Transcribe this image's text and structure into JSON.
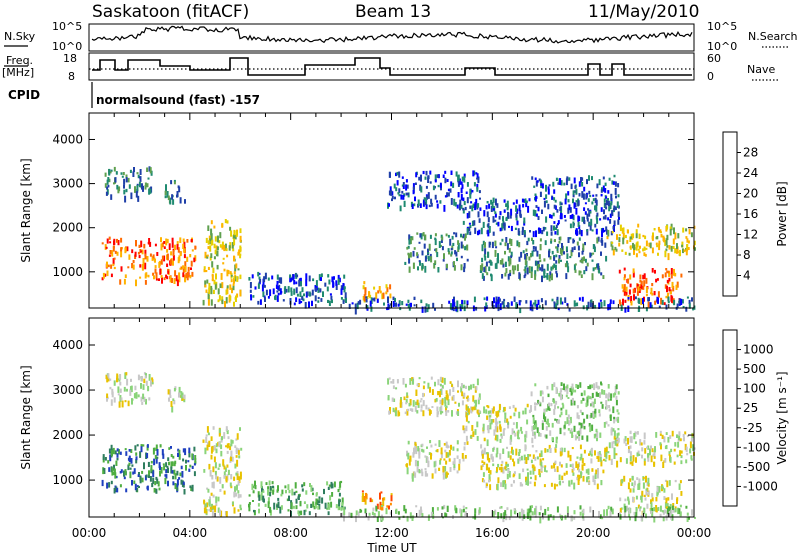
{
  "header": {
    "station": "Saskatoon (fitACF)",
    "beam": "Beam 13",
    "date": "11/May/2010"
  },
  "summary_labels": {
    "nsky": "N.Sky",
    "nsky_top": "10^5",
    "nsky_bottom": "10^0",
    "nsearch": "N.Search",
    "nsearch_top": "10^5",
    "nsearch_bottom": "10^0",
    "freq_line1": "Freq.",
    "freq_line2": "[MHz]",
    "freq_top": "18",
    "freq_bottom": "8",
    "nave": "Nave",
    "nave_top": "60",
    "nave_bottom": "0",
    "cpid": "CPID",
    "cpid_value": "normalsound (fast) -157"
  },
  "colorbars": {
    "power": {
      "label": "Power [dB]",
      "ticks": [
        "28",
        "24",
        "20",
        "16",
        "12",
        "8",
        "4"
      ],
      "colors": [
        "#ff0000",
        "#ff6a00",
        "#ffb300",
        "#e6d000",
        "#5fa04e",
        "#1f8a70",
        "#1f3fa8",
        "#0000ff"
      ]
    },
    "velocity": {
      "label": "Velocity [m s⁻¹]",
      "ticks": [
        "1000",
        "500",
        "100",
        "25",
        "-25",
        "-100",
        "-500",
        "-1000"
      ],
      "colors": [
        "#1e3fbf",
        "#2e7d5e",
        "#4fae40",
        "#8ad47a",
        "#c8c8c8",
        "#e8c200",
        "#ff8c00",
        "#ff4500",
        "#ff0000"
      ]
    }
  },
  "chart_data": [
    {
      "type": "heatmap",
      "title": "Power",
      "xlabel": "Time UT",
      "ylabel": "Slant Range [km]",
      "xticks": [
        "00:00",
        "04:00",
        "08:00",
        "12:00",
        "16:00",
        "20:00",
        "00:00"
      ],
      "yticks": [
        "1000",
        "2000",
        "3000",
        "4000"
      ],
      "xlim_hours": [
        0,
        24
      ],
      "ylim_km": [
        180,
        4600
      ],
      "colorbar": "power",
      "regions": [
        {
          "t0": 0.5,
          "t1": 4.2,
          "r0": 800,
          "r1": 1800,
          "level": 1
        },
        {
          "t0": 0.6,
          "t1": 2.5,
          "r0": 2700,
          "r1": 3400,
          "level": 5
        },
        {
          "t0": 3.0,
          "t1": 3.8,
          "r0": 2600,
          "r1": 3100,
          "level": 5
        },
        {
          "t0": 4.5,
          "t1": 6.0,
          "r0": 300,
          "r1": 2200,
          "level": 3
        },
        {
          "t0": 6.3,
          "t1": 10.2,
          "r0": 300,
          "r1": 1000,
          "level": 6
        },
        {
          "t0": 10.8,
          "t1": 12.0,
          "r0": 400,
          "r1": 800,
          "level": 2
        },
        {
          "t0": 11.8,
          "t1": 15.5,
          "r0": 2500,
          "r1": 3300,
          "level": 6
        },
        {
          "t0": 12.5,
          "t1": 15.0,
          "r0": 1100,
          "r1": 1900,
          "level": 5
        },
        {
          "t0": 14.8,
          "t1": 17.5,
          "r0": 1900,
          "r1": 2700,
          "level": 6
        },
        {
          "t0": 15.5,
          "t1": 20.5,
          "r0": 900,
          "r1": 1800,
          "level": 5
        },
        {
          "t0": 17.5,
          "t1": 21.0,
          "r0": 1900,
          "r1": 3200,
          "level": 6
        },
        {
          "t0": 20.5,
          "t1": 24.0,
          "r0": 1400,
          "r1": 2100,
          "level": 3
        },
        {
          "t0": 21.0,
          "t1": 23.5,
          "r0": 300,
          "r1": 1100,
          "level": 1
        },
        {
          "t0": 10.0,
          "t1": 24.0,
          "r0": 180,
          "r1": 450,
          "level": 6
        }
      ]
    },
    {
      "type": "heatmap",
      "title": "Velocity",
      "xlabel": "Time UT",
      "ylabel": "Slant Range [km]",
      "xticks": [
        "00:00",
        "04:00",
        "08:00",
        "12:00",
        "16:00",
        "20:00",
        "00:00"
      ],
      "yticks": [
        "1000",
        "2000",
        "3000",
        "4000"
      ],
      "xlim_hours": [
        0,
        24
      ],
      "ylim_km": [
        180,
        4600
      ],
      "colorbar": "velocity",
      "regions": [
        {
          "t0": 0.5,
          "t1": 4.2,
          "r0": 800,
          "r1": 1800,
          "level": 1
        },
        {
          "t0": 0.6,
          "t1": 2.5,
          "r0": 2700,
          "r1": 3400,
          "level": 4
        },
        {
          "t0": 3.0,
          "t1": 3.8,
          "r0": 2600,
          "r1": 3100,
          "level": 4
        },
        {
          "t0": 4.5,
          "t1": 6.0,
          "r0": 300,
          "r1": 2200,
          "level": 4
        },
        {
          "t0": 6.3,
          "t1": 10.2,
          "r0": 300,
          "r1": 1000,
          "level": 2
        },
        {
          "t0": 10.8,
          "t1": 12.0,
          "r0": 400,
          "r1": 800,
          "level": 6
        },
        {
          "t0": 11.8,
          "t1": 15.5,
          "r0": 2500,
          "r1": 3300,
          "level": 4
        },
        {
          "t0": 12.5,
          "t1": 15.0,
          "r0": 1100,
          "r1": 1900,
          "level": 4
        },
        {
          "t0": 14.8,
          "t1": 17.5,
          "r0": 1900,
          "r1": 2700,
          "level": 4
        },
        {
          "t0": 15.5,
          "t1": 20.5,
          "r0": 900,
          "r1": 1800,
          "level": 4
        },
        {
          "t0": 17.5,
          "t1": 21.0,
          "r0": 1900,
          "r1": 3200,
          "level": 3
        },
        {
          "t0": 20.5,
          "t1": 24.0,
          "r0": 1400,
          "r1": 2100,
          "level": 4
        },
        {
          "t0": 21.0,
          "t1": 23.5,
          "r0": 300,
          "r1": 1100,
          "level": 4
        },
        {
          "t0": 10.0,
          "t1": 24.0,
          "r0": 180,
          "r1": 450,
          "level": 3
        }
      ]
    }
  ]
}
